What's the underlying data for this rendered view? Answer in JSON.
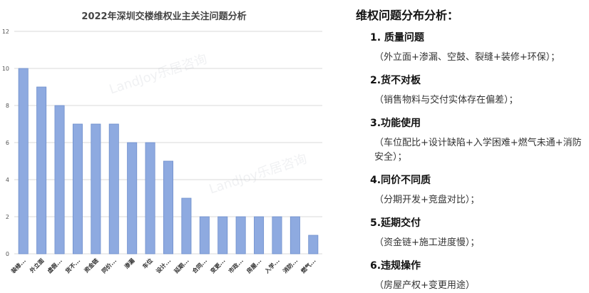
{
  "chart_data": {
    "type": "bar",
    "title": "2022年深圳交楼维权业主关注问题分析",
    "xlabel": "",
    "ylabel": "",
    "ylim": [
      0,
      12
    ],
    "yticks": [
      0,
      2,
      4,
      6,
      8,
      10,
      12
    ],
    "grid": true,
    "legend": "none",
    "bar_color": "#8eaae0",
    "bar_stroke": "#6f8fcc",
    "categories": [
      "装修...",
      "外立面",
      "虚假...",
      "货不...",
      "资金链",
      "同价...",
      "渗漏",
      "车位",
      "设计...",
      "延期...",
      "合同...",
      "变更...",
      "市政...",
      "房屋...",
      "入学...",
      "消防...",
      "燃气..."
    ],
    "values": [
      10,
      9,
      8,
      7,
      7,
      7,
      6,
      6,
      5,
      3,
      2,
      2,
      2,
      2,
      2,
      2,
      1
    ]
  },
  "watermark": "LandJoy乐居咨询",
  "notes": {
    "title": "维权问题分布分析：",
    "items": [
      {
        "heading": "1. 质量问题",
        "detail": "（外立面+渗漏、空鼓、裂缝+装修+环保）；"
      },
      {
        "heading": "2.货不对板",
        "detail": "（销售物料与交付实体存在偏差）；"
      },
      {
        "heading": "3.功能使用",
        "detail": "（车位配比+设计缺陷+入学困难+燃气未通+消防安全）；"
      },
      {
        "heading": "4.同价不同质",
        "detail": "（分期开发+竞盘对比）；"
      },
      {
        "heading": "5.延期交付",
        "detail": "（资金链+施工进度慢）；"
      },
      {
        "heading": "6.违规操作",
        "detail": "（房屋产权+变更用途）"
      }
    ]
  }
}
